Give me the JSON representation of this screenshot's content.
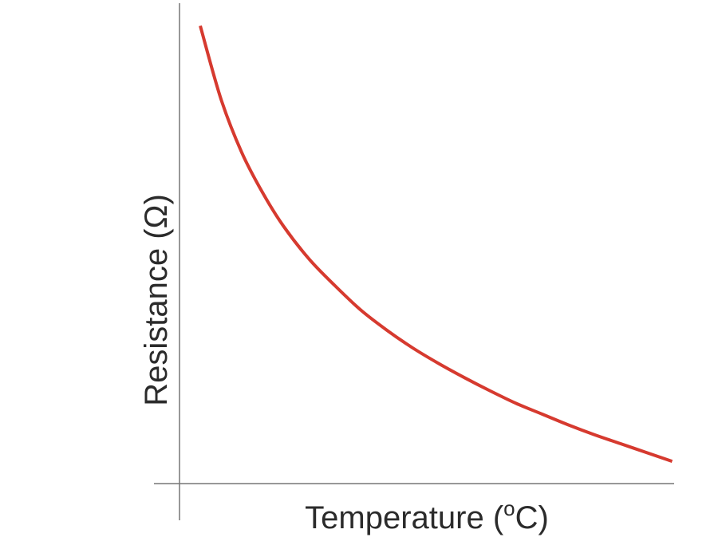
{
  "chart_data": {
    "type": "line",
    "title": "",
    "xlabel": {
      "prefix": "Temperature (",
      "degree": "o",
      "suffix": "C)"
    },
    "ylabel": "Resistance (Ω)",
    "xlim": [
      0,
      10
    ],
    "ylim": [
      0,
      10
    ],
    "grid": false,
    "ticks": false,
    "series": [
      {
        "color": "#d63a2f",
        "x": [
          0.4,
          0.8,
          1.2,
          1.6,
          2.0,
          2.5,
          3.0,
          3.5,
          4.0,
          4.5,
          5.0,
          5.5,
          6.0,
          6.5,
          7.0,
          7.5,
          8.0,
          8.5,
          9.0,
          9.5
        ],
        "y": [
          10.3,
          8.65,
          7.45,
          6.55,
          5.8,
          5.05,
          4.45,
          3.9,
          3.45,
          3.05,
          2.7,
          2.38,
          2.08,
          1.8,
          1.56,
          1.32,
          1.1,
          0.9,
          0.7,
          0.5
        ]
      }
    ],
    "colors": {
      "axis": "#777777",
      "curve": "#d63a2f",
      "text": "#2b2b2b"
    }
  }
}
